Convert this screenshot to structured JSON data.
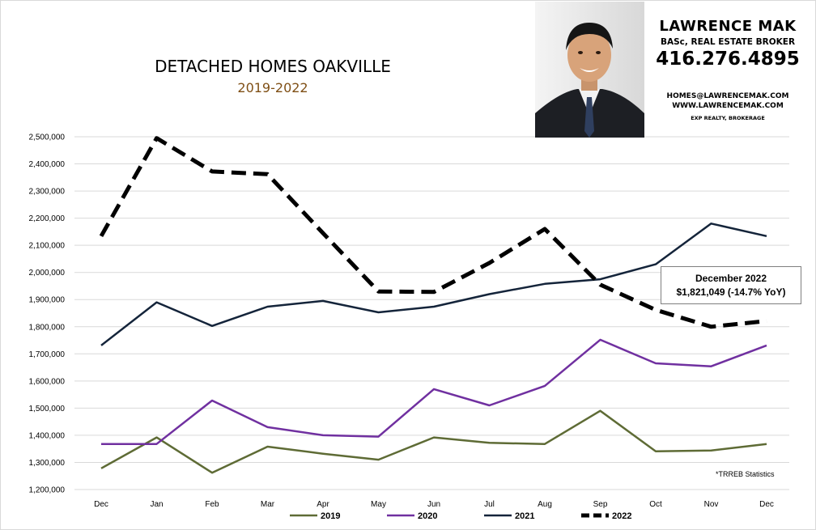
{
  "chart_data": {
    "type": "line",
    "title": "DETACHED HOMES OAKVILLE",
    "subtitle": "2019-2022",
    "categories": [
      "Dec",
      "Jan",
      "Feb",
      "Mar",
      "Apr",
      "May",
      "Jun",
      "Jul",
      "Aug",
      "Sep",
      "Oct",
      "Nov",
      "Dec"
    ],
    "ylim": [
      1200000,
      2500000
    ],
    "yticks": [
      "1,200,000",
      "1,300,000",
      "1,400,000",
      "1,500,000",
      "1,600,000",
      "1,700,000",
      "1,800,000",
      "1,900,000",
      "2,000,000",
      "2,100,000",
      "2,200,000",
      "2,300,000",
      "2,400,000",
      "2,500,000"
    ],
    "grid": true,
    "legend_position": "bottom",
    "series": [
      {
        "name": "2019",
        "color": "#5e6b35",
        "style": "solid",
        "values": [
          1278000,
          1392000,
          1262000,
          1358000,
          1332000,
          1310000,
          1392000,
          1372000,
          1368000,
          1490000,
          1341000,
          1344000,
          1368000
        ]
      },
      {
        "name": "2020",
        "color": "#7030a0",
        "style": "solid",
        "values": [
          1368000,
          1368000,
          1528000,
          1430000,
          1400000,
          1395000,
          1570000,
          1510000,
          1582000,
          1752000,
          1665000,
          1654000,
          1731000
        ]
      },
      {
        "name": "2021",
        "color": "#14243a",
        "style": "solid",
        "values": [
          1731000,
          1890000,
          1803000,
          1874000,
          1895000,
          1853000,
          1874000,
          1920000,
          1958000,
          1975000,
          2030000,
          2180000,
          2134000
        ]
      },
      {
        "name": "2022",
        "color": "#000000",
        "style": "dashed",
        "values": [
          2134000,
          2495000,
          2372000,
          2362000,
          2145000,
          1930000,
          1928000,
          2035000,
          2160000,
          1955000,
          1862000,
          1800000,
          1821000
        ]
      }
    ],
    "annotation": {
      "title": "December 2022",
      "value": "$1,821,049  (-14.7%  YoY)"
    },
    "source_note": "*TRREB Statistics"
  },
  "agent": {
    "name": "LAWRENCE MAK",
    "title": "BASc, REAL ESTATE BROKER",
    "phone": "416.276.4895",
    "email": "HOMES@LAWRENCEMAK.COM",
    "website": "WWW.LAWRENCEMAK.COM",
    "brokerage": "EXP REALTY, BROKERAGE"
  }
}
